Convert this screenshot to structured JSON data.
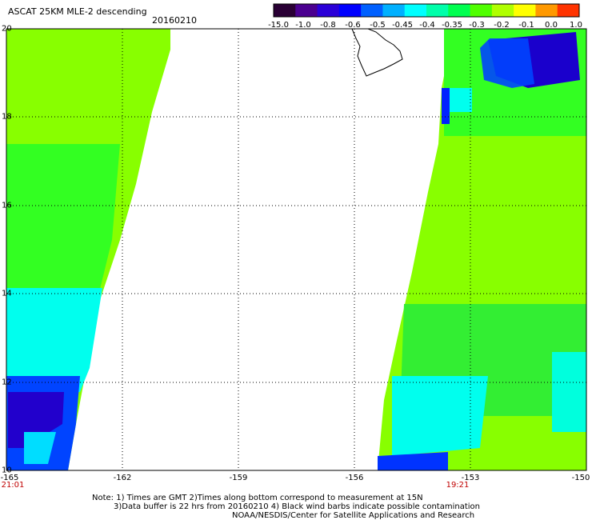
{
  "header": {
    "title": "ASCAT 25KM MLE-2 descending",
    "date": "20160210"
  },
  "colorbar": {
    "labels": [
      "-15.0",
      "-1.0",
      "-0.8",
      "-0.6",
      "-0.5",
      "-0.45",
      "-0.4",
      "-0.35",
      "-0.3",
      "-0.2",
      "-0.1",
      "0.0",
      "1.0"
    ],
    "colors": [
      "#2a0035",
      "#4b0090",
      "#2b00d8",
      "#0000ff",
      "#0060ff",
      "#00b0ff",
      "#00ffff",
      "#00ffaa",
      "#00ff50",
      "#50ff00",
      "#b0ff00",
      "#ffff00",
      "#ff9900",
      "#ff3300"
    ]
  },
  "axes": {
    "lat_labels": [
      "20",
      "18",
      "16",
      "14",
      "12",
      "10"
    ],
    "lon_labels": [
      "-165",
      "-162",
      "-159",
      "-156",
      "-153",
      "-150"
    ]
  },
  "times": {
    "left": "21:01",
    "right": "19:21"
  },
  "notes": {
    "line1": "Note: 1) Times are GMT 2)Times along bottom correspond to measurement at 15N",
    "line2": "3)Data buffer is 22 hrs from 20160210 4) Black wind barbs indicate possible contamination",
    "line3": "NOAA/NESDIS/Center for Satellite Applications and Research"
  },
  "map": {
    "swath_colors": {
      "green_light": "#88ff00",
      "green": "#33ff22",
      "green_dark": "#00ee44",
      "cyan": "#00ffee",
      "blue": "#0044ff",
      "navy": "#2200cc"
    }
  }
}
